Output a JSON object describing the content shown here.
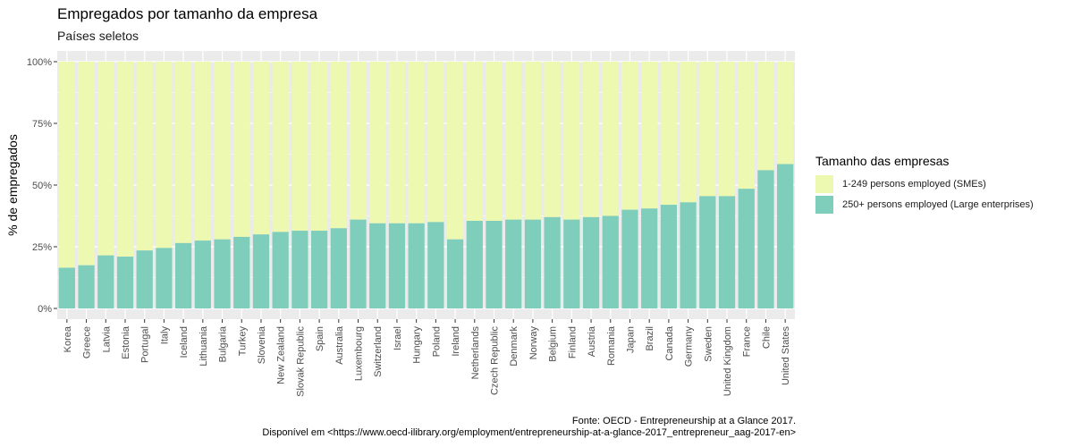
{
  "title": "Empregados por tamanho da empresa",
  "subtitle": "Países seletos",
  "caption_line1": "Fonte: OECD - Entrepreneurship at a Glance 2017.",
  "caption_line2": "Disponível em <https://www.oecd-ilibrary.org/employment/entrepreneurship-at-a-glance-2017_entrepreneur_aag-2017-en>",
  "colors": {
    "panel_bg": "#ebebeb",
    "grid": "#ffffff",
    "large": "#7fcdbb",
    "sme": "#edf8b1"
  },
  "legend": {
    "title": "Tamanho das empresas",
    "items": [
      {
        "label": "1-249 persons employed (SMEs)",
        "color": "#edf8b1"
      },
      {
        "label": "250+ persons employed (Large enterprises)",
        "color": "#7fcdbb"
      }
    ]
  },
  "chart_data": {
    "type": "bar",
    "stacked": true,
    "normalized": true,
    "ylabel": "% de empregados",
    "xlabel": "",
    "ylim": [
      0,
      100
    ],
    "yticks": [
      "0%",
      "25%",
      "50%",
      "75%",
      "100%"
    ],
    "grid": true,
    "legend_position": "right",
    "categories": [
      "Korea",
      "Greece",
      "Latvia",
      "Estonia",
      "Portugal",
      "Italy",
      "Iceland",
      "Lithuania",
      "Bulgaria",
      "Turkey",
      "Slovenia",
      "New Zealand",
      "Slovak Republic",
      "Spain",
      "Australia",
      "Luxembourg",
      "Switzerland",
      "Israel",
      "Hungary",
      "Poland",
      "Ireland",
      "Netherlands",
      "Czech Republic",
      "Denmark",
      "Norway",
      "Belgium",
      "Finland",
      "Austria",
      "Romania",
      "Japan",
      "Brazil",
      "Canada",
      "Germany",
      "Sweden",
      "United Kingdom",
      "France",
      "Chile",
      "United States"
    ],
    "series": [
      {
        "name": "250+ persons employed (Large enterprises)",
        "values": [
          16.5,
          17.5,
          21.5,
          21,
          23.5,
          24.5,
          26.5,
          27.5,
          28,
          29,
          30,
          31,
          31.5,
          31.5,
          32.5,
          36,
          34.5,
          34.5,
          34.5,
          35,
          28,
          35.5,
          35.5,
          36,
          36,
          37,
          36,
          37,
          37.5,
          40,
          40.5,
          42,
          43,
          45.5,
          45.5,
          48.5,
          56,
          58.5
        ]
      },
      {
        "name": "1-249 persons employed (SMEs)",
        "values": [
          83.5,
          82.5,
          78.5,
          79,
          76.5,
          75.5,
          73.5,
          72.5,
          72,
          71,
          70,
          69,
          68.5,
          68.5,
          67.5,
          64,
          65.5,
          65.5,
          65.5,
          65,
          72,
          64.5,
          64.5,
          64,
          64,
          63,
          64,
          63,
          62.5,
          60,
          59.5,
          58,
          57,
          54.5,
          54.5,
          51.5,
          44,
          41.5
        ]
      }
    ]
  }
}
